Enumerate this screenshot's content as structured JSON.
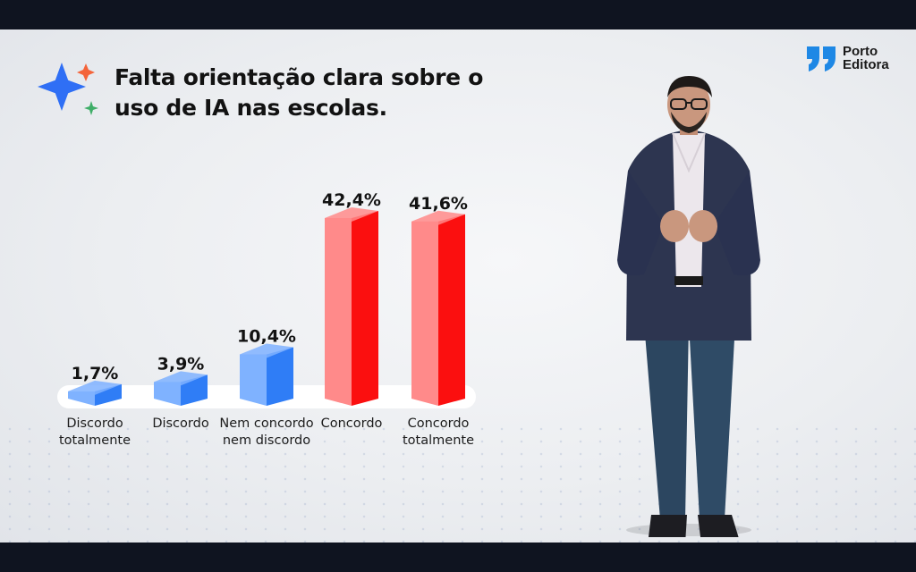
{
  "title": "Falta orientação clara sobre o uso de IA nas escolas.",
  "brand": {
    "line1": "Porto",
    "line2": "Editora"
  },
  "colors": {
    "blue": "#2f7df6",
    "blueLight": "#7fb2ff",
    "red": "#fb0f0f",
    "redLight": "#ff8a8a",
    "ink": "#121212"
  },
  "chart_data": {
    "type": "bar",
    "categories": [
      [
        "Discordo",
        "totalmente"
      ],
      [
        "Discordo"
      ],
      [
        "Nem concordo",
        "nem discordo"
      ],
      [
        "Concordo"
      ],
      [
        "Concordo",
        "totalmente"
      ]
    ],
    "values": [
      1.7,
      3.9,
      10.4,
      42.4,
      41.6
    ],
    "value_labels": [
      "1,7%",
      "3,9%",
      "10,4%",
      "42,4%",
      "41,6%"
    ],
    "bar_colors": [
      "blue",
      "blue",
      "blue",
      "red",
      "red"
    ],
    "ylim": [
      0,
      45
    ]
  }
}
